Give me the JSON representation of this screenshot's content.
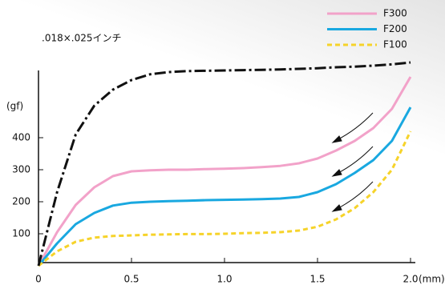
{
  "chart_data": {
    "type": "line",
    "title": ".018×.025インチ",
    "ylabel": "(gf)",
    "xlabel": "(mm)",
    "x": [
      0,
      0.1,
      0.2,
      0.3,
      0.4,
      0.5,
      0.6,
      0.7,
      0.8,
      0.9,
      1.0,
      1.1,
      1.2,
      1.3,
      1.4,
      1.5,
      1.6,
      1.7,
      1.8,
      1.9,
      2.0
    ],
    "series": [
      {
        "name": "F300",
        "color": "#f2a2c9",
        "dash": "none",
        "values": [
          0,
          105,
          190,
          245,
          280,
          295,
          298,
          300,
          300,
          302,
          303,
          305,
          308,
          312,
          320,
          335,
          360,
          390,
          430,
          490,
          590
        ]
      },
      {
        "name": "F200",
        "color": "#19a8e0",
        "dash": "none",
        "values": [
          0,
          70,
          130,
          165,
          188,
          197,
          200,
          202,
          203,
          205,
          206,
          207,
          208,
          210,
          215,
          230,
          255,
          290,
          330,
          390,
          495
        ]
      },
      {
        "name": "F100",
        "color": "#f6d32a",
        "dash": "6 4",
        "values": [
          0,
          45,
          75,
          88,
          93,
          95,
          97,
          98,
          99,
          99,
          100,
          102,
          103,
          105,
          110,
          122,
          145,
          180,
          230,
          300,
          420
        ]
      },
      {
        "color": "#111111",
        "dash": "14 4 3 4",
        "values": [
          0,
          230,
          410,
          500,
          550,
          580,
          598,
          605,
          608,
          609,
          610,
          611,
          612,
          613,
          615,
          617,
          620,
          622,
          625,
          629,
          635
        ]
      }
    ],
    "xlim": [
      0,
      2.0
    ],
    "xticks": [
      0,
      0.5,
      {
        "value": 1,
        "label": "1.0"
      },
      1.5,
      {
        "value": 2,
        "label": "2.0"
      }
    ],
    "ylim": [
      0,
      650
    ],
    "yticks": [
      100,
      200,
      300,
      400
    ],
    "legend": "upper right"
  }
}
